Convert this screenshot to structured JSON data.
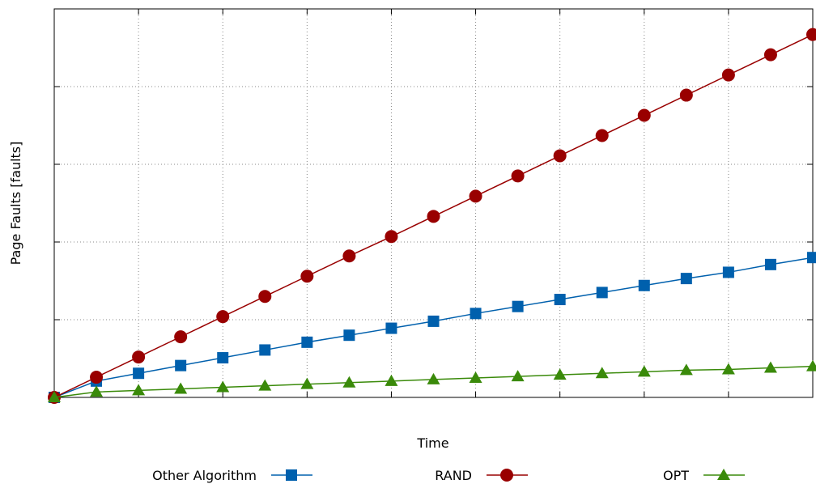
{
  "chart_data": {
    "type": "line",
    "title": "",
    "xlabel": "Time",
    "ylabel": "Page Faults [faults]",
    "x": [
      0,
      1,
      2,
      3,
      4,
      5,
      6,
      7,
      8,
      9,
      10,
      11,
      12,
      13,
      14,
      15,
      16,
      17,
      18
    ],
    "xlim": [
      0,
      18
    ],
    "ylim": [
      0,
      5
    ],
    "grid": true,
    "legend": "bottom",
    "series": [
      {
        "name": "Other Algorithm",
        "marker": "square",
        "color": "#0060ad",
        "values": [
          0.0,
          0.21,
          0.31,
          0.41,
          0.51,
          0.61,
          0.71,
          0.8,
          0.89,
          0.98,
          1.08,
          1.17,
          1.26,
          1.35,
          1.44,
          1.53,
          1.61,
          1.71,
          1.8
        ]
      },
      {
        "name": "RAND",
        "marker": "circle",
        "color": "#990000",
        "values": [
          0.0,
          0.26,
          0.52,
          0.78,
          1.04,
          1.3,
          1.56,
          1.82,
          2.07,
          2.33,
          2.59,
          2.85,
          3.11,
          3.37,
          3.63,
          3.89,
          4.15,
          4.41,
          4.67
        ]
      },
      {
        "name": "OPT",
        "marker": "triangle",
        "color": "#3a8a0a",
        "values": [
          0.0,
          0.07,
          0.09,
          0.11,
          0.13,
          0.15,
          0.17,
          0.19,
          0.21,
          0.23,
          0.25,
          0.27,
          0.29,
          0.31,
          0.33,
          0.35,
          0.36,
          0.38,
          0.4
        ]
      }
    ]
  }
}
